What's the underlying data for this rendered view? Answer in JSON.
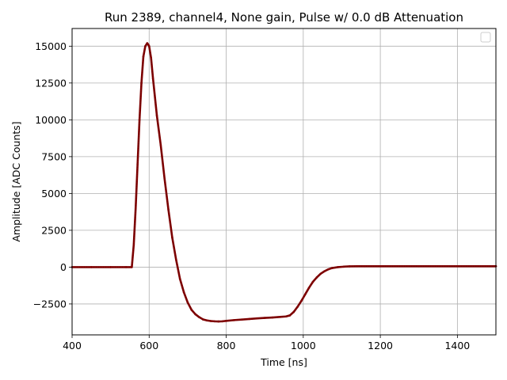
{
  "chart_data": {
    "type": "line",
    "title": "Run 2389, channel4, None gain, Pulse w/ 0.0 dB Attenuation",
    "xlabel": "Time [ns]",
    "ylabel": "Amplitude [ADC Counts]",
    "xlim": [
      400,
      1500
    ],
    "ylim": [
      -4600,
      16200
    ],
    "x_ticks": [
      400,
      600,
      800,
      1000,
      1200,
      1400
    ],
    "x_tick_labels": [
      "400",
      "600",
      "800",
      "1000",
      "1200",
      "1400"
    ],
    "y_ticks": [
      -2500,
      0,
      2500,
      5000,
      7500,
      10000,
      12500,
      15000
    ],
    "y_tick_labels": [
      "−2500",
      "0",
      "2500",
      "5000",
      "7500",
      "10000",
      "12500",
      "15000"
    ],
    "grid": true,
    "legend": "upper right (empty)",
    "series": [
      {
        "color": "#800000",
        "style": "dotted markers, dense samples",
        "x": [
          400,
          450,
          500,
          540,
          555,
          560,
          565,
          570,
          575,
          580,
          585,
          590,
          595,
          598,
          600,
          605,
          610,
          620,
          630,
          640,
          650,
          660,
          670,
          680,
          690,
          700,
          710,
          720,
          730,
          740,
          750,
          760,
          770,
          780,
          790,
          800,
          820,
          840,
          860,
          880,
          900,
          920,
          940,
          955,
          965,
          975,
          985,
          995,
          1005,
          1015,
          1025,
          1035,
          1045,
          1055,
          1065,
          1075,
          1090,
          1105,
          1120,
          1140,
          1160,
          1200,
          1300,
          1400,
          1500
        ],
        "y": [
          0,
          0,
          0,
          0,
          0,
          1500,
          4000,
          7000,
          10000,
          12500,
          14300,
          15000,
          15200,
          15100,
          15000,
          14200,
          12800,
          10300,
          8300,
          6000,
          3900,
          2000,
          500,
          -800,
          -1700,
          -2400,
          -2900,
          -3200,
          -3400,
          -3550,
          -3620,
          -3660,
          -3680,
          -3690,
          -3680,
          -3650,
          -3600,
          -3560,
          -3520,
          -3480,
          -3450,
          -3420,
          -3380,
          -3350,
          -3280,
          -3050,
          -2700,
          -2300,
          -1850,
          -1400,
          -1000,
          -700,
          -450,
          -280,
          -150,
          -60,
          0,
          30,
          50,
          60,
          60,
          60,
          60,
          60,
          60
        ]
      }
    ]
  }
}
